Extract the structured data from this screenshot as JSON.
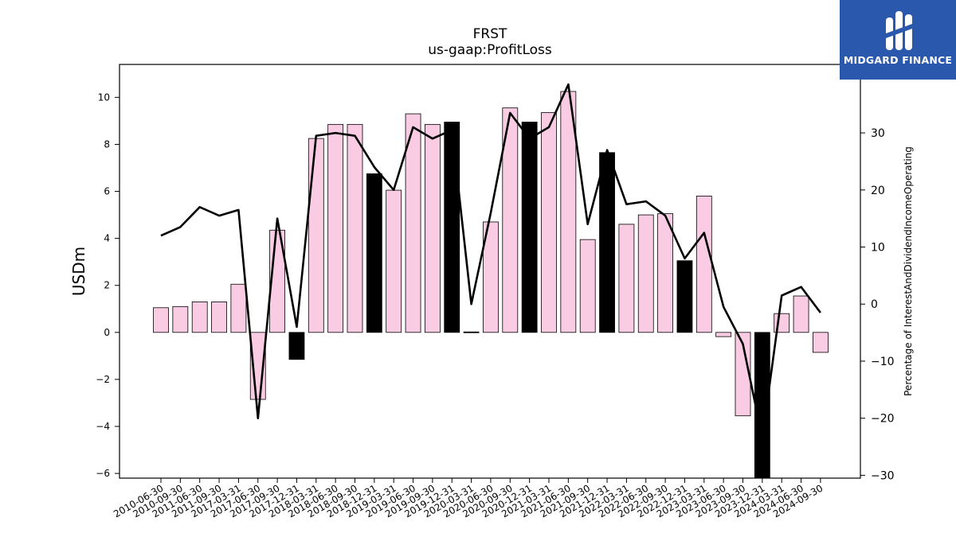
{
  "chart_data": {
    "type": "bar",
    "title": "FRST",
    "subtitle": "us-gaap:ProfitLoss",
    "ylabel": "USDm",
    "y2label": "Percentage of InterestAndDividendIncomeOperating",
    "ylim": [
      -6.2,
      11.4
    ],
    "y2lim": [
      -30.5,
      42
    ],
    "yticks": [
      -6,
      -4,
      -2,
      0,
      2,
      4,
      6,
      8,
      10
    ],
    "y2ticks": [
      -30,
      -20,
      -10,
      0,
      10,
      20,
      30
    ],
    "categories": [
      "2010-06-30",
      "2010-09-30",
      "2011-06-30",
      "2011-09-30",
      "2017-03-31",
      "2017-06-30",
      "2017-09-30",
      "2017-12-31",
      "2018-03-31",
      "2018-06-30",
      "2018-09-30",
      "2018-12-31",
      "2019-03-31",
      "2019-06-30",
      "2019-09-30",
      "2019-12-31",
      "2020-03-31",
      "2020-06-30",
      "2020-09-30",
      "2020-12-31",
      "2021-03-31",
      "2021-06-30",
      "2021-09-30",
      "2021-12-31",
      "2022-03-31",
      "2022-06-30",
      "2022-09-30",
      "2022-12-31",
      "2023-03-31",
      "2023-06-30",
      "2023-09-30",
      "2023-12-31",
      "2024-03-31",
      "2024-06-30",
      "2024-09-30"
    ],
    "series": [
      {
        "type": "bar",
        "values": [
          1.05,
          1.1,
          1.3,
          1.3,
          2.05,
          -2.85,
          4.35,
          -1.15,
          8.25,
          8.85,
          8.85,
          6.75,
          6.05,
          9.3,
          8.85,
          8.95,
          0.02,
          4.7,
          9.55,
          8.95,
          9.35,
          10.25,
          3.95,
          7.65,
          4.6,
          5.0,
          5.05,
          3.05,
          5.8,
          -0.18,
          -3.55,
          -6.2,
          0.8,
          1.55,
          -0.85
        ],
        "highlight": [
          false,
          false,
          false,
          false,
          false,
          false,
          false,
          true,
          false,
          false,
          false,
          true,
          false,
          false,
          false,
          true,
          true,
          false,
          false,
          true,
          false,
          false,
          false,
          true,
          false,
          false,
          false,
          true,
          false,
          false,
          false,
          true,
          false,
          false,
          false
        ],
        "colors": {
          "normal": "#f9cce3",
          "highlight": "#000000",
          "edge": "#000000"
        }
      },
      {
        "type": "line",
        "axis": "right",
        "values": [
          12.0,
          13.5,
          17.0,
          15.5,
          16.5,
          -20.0,
          15.0,
          -4.0,
          29.5,
          30.0,
          29.5,
          24.0,
          20.0,
          31.0,
          29.0,
          30.5,
          0.0,
          16.0,
          33.5,
          29.0,
          31.0,
          38.5,
          14.0,
          27.0,
          17.5,
          18.0,
          15.5,
          8.0,
          12.5,
          -0.5,
          -7.0,
          -23.5,
          1.5,
          3.0,
          -1.5
        ],
        "color": "#000000"
      }
    ]
  },
  "logo": {
    "text": "MIDGARD FINANCE",
    "bg_color": "#2a58ad"
  }
}
